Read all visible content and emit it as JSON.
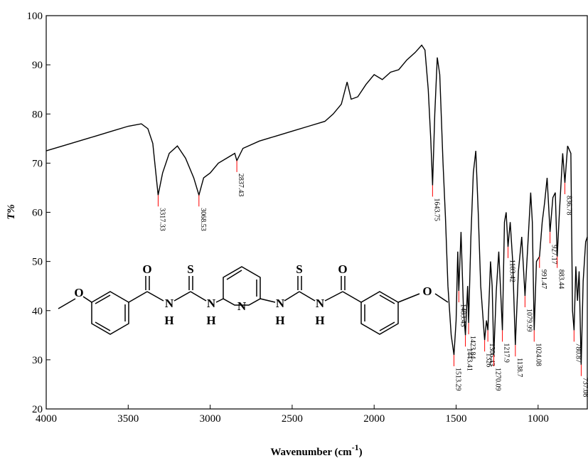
{
  "chart_data": {
    "type": "line",
    "xlabel": [
      "Wavenumber (cm",
      "-1",
      ")"
    ],
    "ylabel": "T%",
    "xlim": [
      4000,
      700
    ],
    "ylim": [
      20,
      100
    ],
    "xticks": [
      4000,
      3500,
      3000,
      2500,
      2000,
      1500,
      1000
    ],
    "yticks": [
      20,
      30,
      40,
      50,
      60,
      70,
      80,
      90,
      100
    ],
    "grid": false,
    "series": [
      {
        "color": "#000000",
        "x": [
          4000,
          3900,
          3800,
          3700,
          3600,
          3500,
          3420,
          3380,
          3350,
          3317.33,
          3290,
          3250,
          3200,
          3150,
          3100,
          3068.53,
          3040,
          3000,
          2950,
          2900,
          2850,
          2837.43,
          2800,
          2700,
          2600,
          2500,
          2400,
          2300,
          2250,
          2200,
          2165,
          2140,
          2100,
          2050,
          2000,
          1950,
          1900,
          1850,
          1800,
          1750,
          1710,
          1690,
          1670,
          1655,
          1643.75,
          1630,
          1615,
          1600,
          1580,
          1565,
          1550,
          1530,
          1513.29,
          1500,
          1490,
          1483.43,
          1470,
          1455,
          1443.41,
          1430,
          1423.84,
          1410,
          1395,
          1380,
          1365,
          1350,
          1326,
          1315,
          1306.43,
          1290,
          1280,
          1270.09,
          1255,
          1240,
          1230,
          1217.9,
          1205,
          1195,
          1183.42,
          1170,
          1155,
          1138.7,
          1120,
          1100,
          1079.99,
          1060,
          1045,
          1035,
          1024.08,
          1010,
          991.47,
          975,
          960,
          945,
          927.17,
          910,
          895,
          883.44,
          870,
          850,
          836.78,
          820,
          800,
          790,
          780.87,
          770,
          760,
          750,
          737.08,
          725,
          710,
          700
        ],
        "values": [
          72.5,
          73.5,
          74.5,
          75.5,
          76.5,
          77.5,
          78,
          77,
          74,
          63.5,
          68,
          72,
          73.5,
          71,
          67,
          63.5,
          67,
          68,
          70,
          71,
          72,
          70.5,
          73,
          74.5,
          75.5,
          76.5,
          77.5,
          78.5,
          80,
          82,
          86.5,
          83,
          83.5,
          86,
          88,
          87,
          88.5,
          89,
          91,
          92.5,
          94,
          93,
          85,
          75,
          65.5,
          80,
          91.5,
          88,
          70,
          59,
          45,
          35,
          31,
          38,
          52,
          44,
          56,
          40,
          35,
          45,
          37.5,
          55,
          68,
          72.5,
          60,
          45,
          34,
          38,
          36,
          50,
          45,
          31,
          44,
          52,
          45,
          36,
          58,
          60,
          53,
          58,
          50,
          33,
          48,
          55,
          43,
          55,
          64,
          58,
          36,
          50,
          51,
          58,
          62,
          67,
          56,
          63,
          64,
          51,
          60,
          72,
          66,
          73.5,
          72,
          40,
          36,
          49,
          42,
          48,
          29,
          46,
          54,
          55
        ]
      }
    ],
    "peaks": {
      "label_color": "#ff0000",
      "x": [
        3317.33,
        3068.53,
        2837.43,
        1643.75,
        1513.29,
        1483.43,
        1443.41,
        1423.84,
        1326,
        1306.43,
        1270.09,
        1217.9,
        1183.42,
        1138.7,
        1079.99,
        1024.08,
        991.47,
        927.17,
        883.44,
        836.78,
        780.87,
        737.08
      ],
      "y": [
        63.5,
        63.5,
        70.5,
        65.5,
        31,
        44,
        35,
        37.5,
        34,
        36,
        31,
        36,
        53,
        33,
        43,
        36,
        51,
        56,
        51,
        66,
        36,
        29
      ]
    }
  },
  "structure": {
    "atoms": [
      "O",
      "O",
      "N",
      "H",
      "S",
      "N",
      "H",
      "N",
      "N",
      "H",
      "S",
      "N",
      "H",
      "O",
      "O"
    ]
  }
}
